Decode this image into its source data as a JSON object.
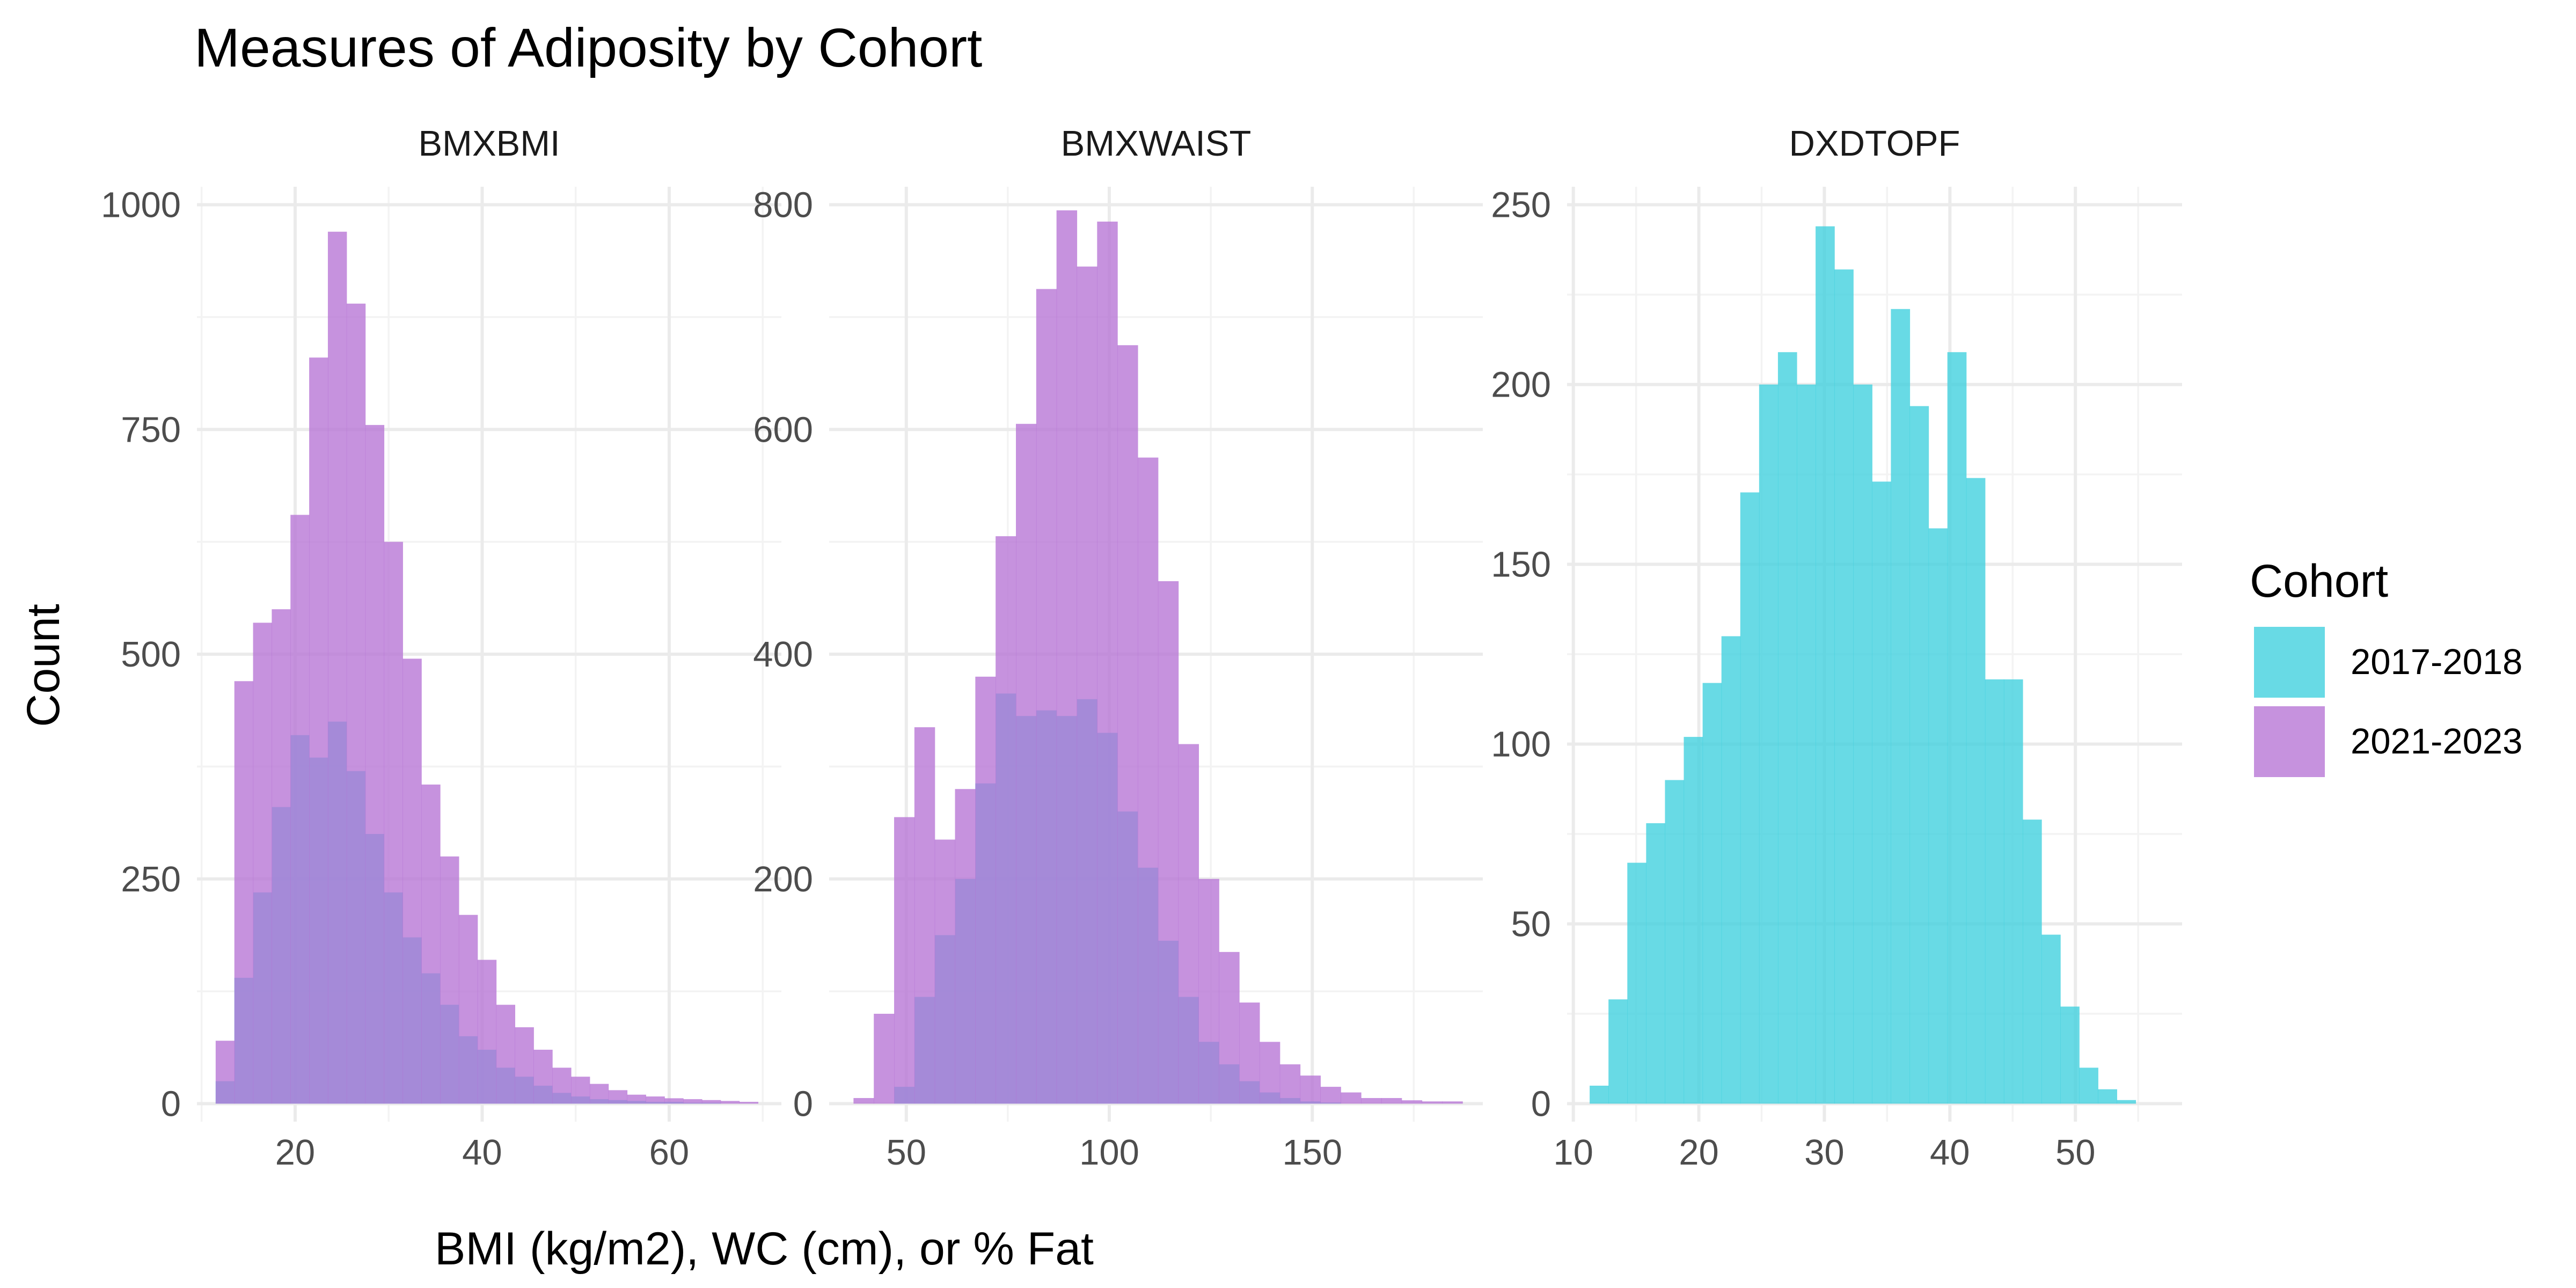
{
  "title": "Measures of Adiposity by Cohort",
  "xlabel": "BMI (kg/m2), WC (cm), or % Fat",
  "ylabel": "Count",
  "legend": {
    "title": "Cohort",
    "position": "right",
    "items": [
      {
        "label": "2017-2018",
        "color": "#3dd0de"
      },
      {
        "label": "2021-2023",
        "color": "#b673d5"
      }
    ]
  },
  "colors": {
    "cohort_2017_2018": "#3dd0de",
    "cohort_2021_2023": "#b673d5",
    "overlap": "#8d7cd6",
    "grid": "#ebebeb"
  },
  "chart_data": [
    {
      "type": "histogram",
      "panel": "BMXBMI",
      "xlim": [
        9.5,
        72
      ],
      "ylim": [
        -20,
        1020
      ],
      "x_ticks": [
        20,
        40,
        60
      ],
      "y_ticks": [
        0,
        250,
        500,
        750,
        1000
      ],
      "bin_start": 11.5,
      "bin_width": 2,
      "series": [
        {
          "name": "2017-2018",
          "values": [
            25,
            140,
            235,
            330,
            410,
            385,
            425,
            370,
            300,
            235,
            185,
            145,
            110,
            75,
            60,
            40,
            30,
            20,
            12,
            8,
            5,
            4,
            3,
            2,
            2,
            1,
            1,
            0,
            0
          ]
        },
        {
          "name": "2021-2023",
          "values": [
            70,
            470,
            535,
            550,
            655,
            830,
            970,
            890,
            755,
            625,
            495,
            355,
            275,
            210,
            160,
            110,
            85,
            60,
            40,
            30,
            22,
            15,
            10,
            8,
            6,
            5,
            4,
            3,
            2
          ]
        }
      ]
    },
    {
      "type": "histogram",
      "panel": "BMXWAIST",
      "xlim": [
        31,
        192
      ],
      "ylim": [
        -16,
        816
      ],
      "x_ticks": [
        50,
        100,
        150
      ],
      "y_ticks": [
        0,
        200,
        400,
        600,
        800
      ],
      "bin_start": 37,
      "bin_width": 5,
      "series": [
        {
          "name": "2017-2018",
          "values": [
            0,
            0,
            15,
            95,
            150,
            200,
            285,
            365,
            345,
            350,
            345,
            360,
            330,
            260,
            210,
            145,
            95,
            55,
            35,
            20,
            10,
            5,
            2,
            1,
            0,
            0,
            0,
            0,
            0,
            0
          ]
        },
        {
          "name": "2021-2023",
          "values": [
            5,
            80,
            255,
            335,
            235,
            280,
            380,
            505,
            605,
            725,
            795,
            745,
            785,
            675,
            575,
            465,
            320,
            200,
            135,
            90,
            55,
            35,
            25,
            15,
            10,
            5,
            5,
            3,
            2,
            2
          ]
        }
      ]
    },
    {
      "type": "histogram",
      "panel": "DXDTOPF",
      "xlim": [
        9.5,
        58.5
      ],
      "ylim": [
        -5,
        255
      ],
      "x_ticks": [
        10,
        20,
        30,
        40,
        50
      ],
      "y_ticks": [
        0,
        50,
        100,
        150,
        200,
        250
      ],
      "bin_start": 11.3,
      "bin_width": 1.5,
      "series": [
        {
          "name": "2017-2018",
          "values": [
            5,
            29,
            67,
            78,
            90,
            102,
            117,
            130,
            170,
            200,
            209,
            200,
            244,
            232,
            200,
            173,
            221,
            194,
            160,
            209,
            174,
            118,
            118,
            79,
            47,
            27,
            10,
            4,
            1
          ]
        }
      ]
    }
  ]
}
